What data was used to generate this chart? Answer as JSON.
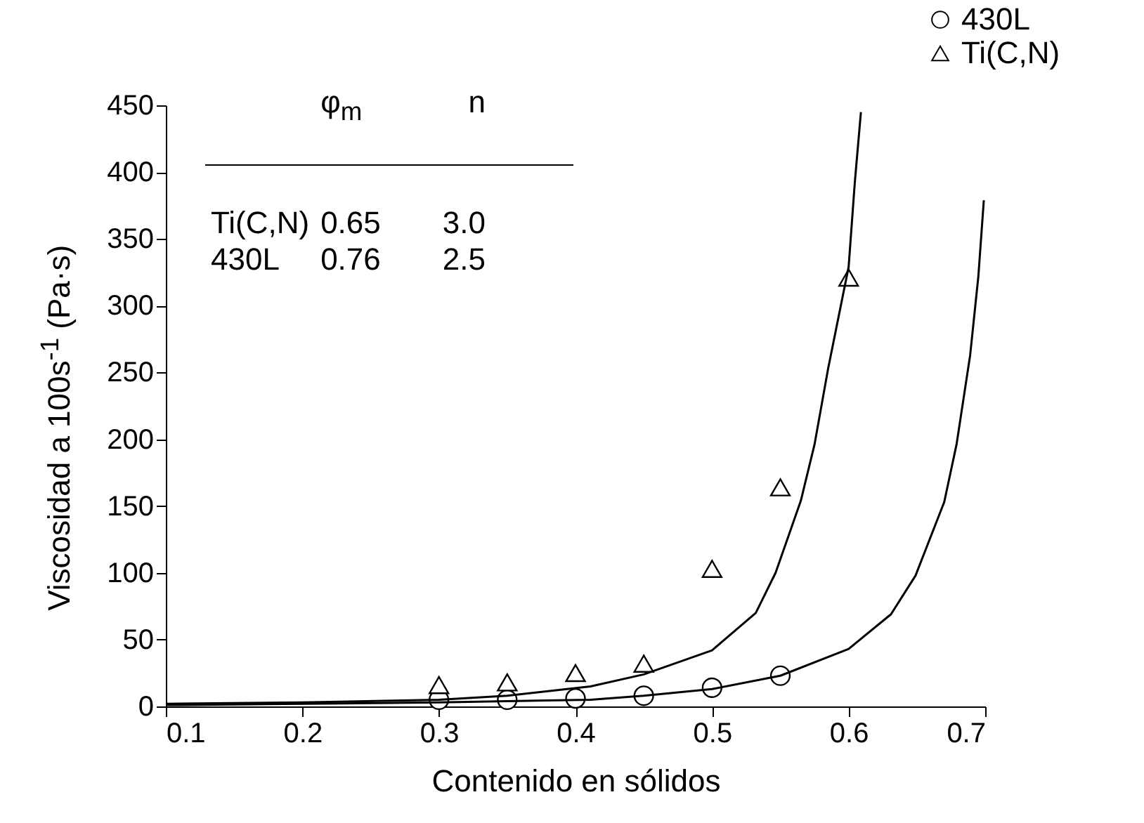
{
  "chart_data": {
    "type": "scatter",
    "xlabel": "Contenido en sólidos",
    "ylabel": "Viscosidad a 100s$^{-1}$ (Pa·s)",
    "xlim": [
      0.1,
      0.7
    ],
    "xticks": [
      0.1,
      0.2,
      0.3,
      0.4,
      0.5,
      0.6,
      0.7
    ],
    "ylim": [
      0,
      450
    ],
    "yticks": [
      0,
      50,
      100,
      150,
      200,
      250,
      300,
      350,
      400,
      450
    ],
    "grid": false,
    "legend": "top right",
    "annotations": [
      "φ$_{m}$",
      "n",
      "Ti(C,N)",
      "0.65",
      "3.0",
      "430L",
      "0.76",
      "2.5"
    ],
    "series": [
      {
        "name": "430L",
        "marker": "circle",
        "color": "#000000",
        "x": [
          0.3,
          0.35,
          0.4,
          0.45,
          0.5,
          0.55
        ],
        "values": [
          5,
          5,
          6,
          8,
          14,
          23
        ]
      },
      {
        "name": "Ti(C,N)",
        "marker": "triangle",
        "color": "#000000",
        "x": [
          0.3,
          0.35,
          0.4,
          0.45,
          0.5,
          0.55,
          0.6
        ],
        "values": [
          16,
          18,
          25,
          32,
          103,
          164,
          321
        ]
      },
      {
        "type": "line",
        "color": "#000000",
        "x": [
          0.1,
          0.2,
          0.3,
          0.35,
          0.411,
          0.45,
          0.5,
          0.532,
          0.5465,
          0.565,
          0.575,
          0.585,
          0.6,
          0.6045,
          0.609
        ],
        "values": [
          2,
          3,
          5,
          8,
          15,
          24,
          42,
          70,
          100,
          154,
          196,
          253,
          329,
          392,
          445
        ]
      },
      {
        "type": "line",
        "color": "#000000",
        "x": [
          0.1,
          0.2,
          0.3,
          0.35,
          0.411,
          0.45,
          0.5,
          0.55,
          0.6,
          0.631,
          0.649,
          0.67,
          0.679,
          0.689,
          0.695,
          0.699
        ],
        "values": [
          1,
          2,
          3,
          4,
          5,
          8,
          13,
          23,
          43,
          69,
          98,
          153,
          196,
          263,
          322,
          379
        ]
      }
    ]
  }
}
